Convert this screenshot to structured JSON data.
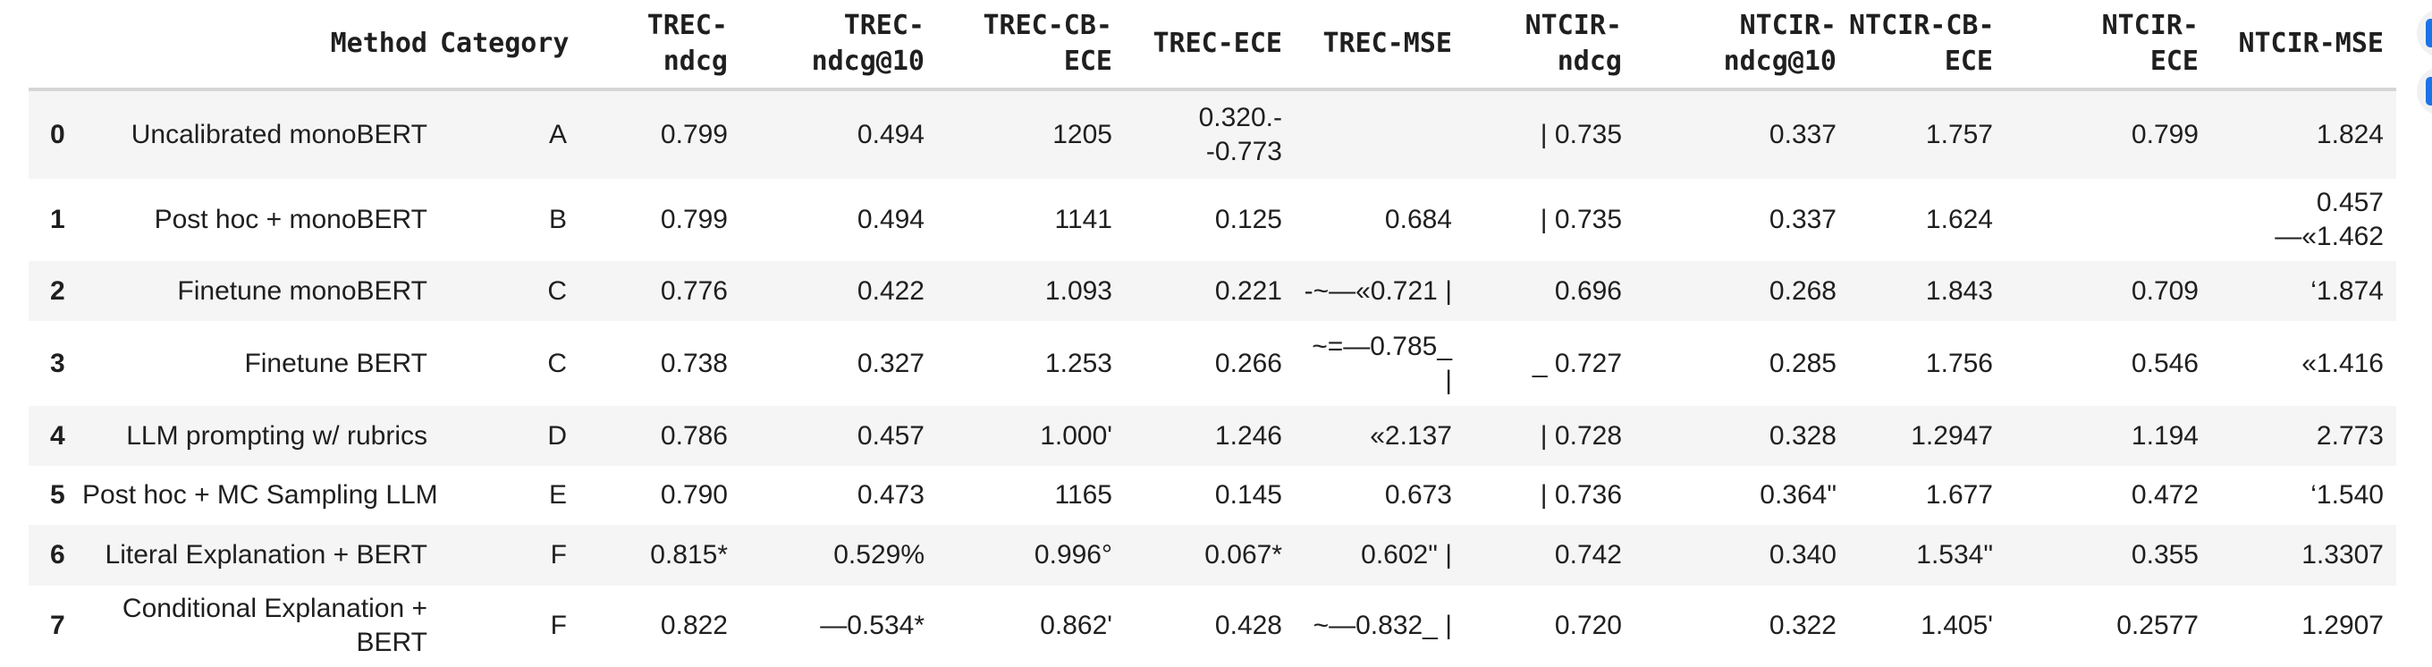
{
  "colors": {
    "accent_blue": "#1a73e8",
    "row_stripe": "#f5f5f5",
    "header_rule": "#d6d6d6",
    "text": "#1f1f1f",
    "button_circle_bg": "#f0f1f2"
  },
  "table": {
    "columns": [
      {
        "key": "index",
        "label_lines": [
          ""
        ]
      },
      {
        "key": "method",
        "label_lines": [
          "Method"
        ]
      },
      {
        "key": "category",
        "label_lines": [
          "Category"
        ]
      },
      {
        "key": "trec_ndcg",
        "label_lines": [
          "TREC-",
          "ndcg"
        ]
      },
      {
        "key": "trec_ndcg_at_10",
        "label_lines": [
          "TREC-",
          "ndcg@10"
        ]
      },
      {
        "key": "trec_cb_ece",
        "label_lines": [
          "TREC-CB-",
          "ECE"
        ]
      },
      {
        "key": "trec_ece",
        "label_lines": [
          "TREC-ECE"
        ]
      },
      {
        "key": "trec_mse",
        "label_lines": [
          "TREC-MSE"
        ]
      },
      {
        "key": "ntcir_ndcg",
        "label_lines": [
          "NTCIR-",
          "ndcg"
        ]
      },
      {
        "key": "ntcir_ndcg_at_10",
        "label_lines": [
          "NTCIR-",
          "ndcg@10"
        ]
      },
      {
        "key": "ntcir_cb_ece",
        "label_lines": [
          "NTCIR-CB-",
          "ECE"
        ]
      },
      {
        "key": "ntcir_ece",
        "label_lines": [
          "NTCIR-",
          "ECE"
        ]
      },
      {
        "key": "ntcir_mse",
        "label_lines": [
          "NTCIR-MSE"
        ]
      }
    ],
    "rows": [
      {
        "cells": [
          "0",
          "Uncalibrated monoBERT",
          "A",
          "0.799",
          "0.494",
          "1205",
          [
            "0.320.-",
            "-0.773"
          ],
          "",
          "| 0.735",
          "0.337",
          "1.757",
          "0.799",
          "1.824"
        ]
      },
      {
        "cells": [
          "1",
          "Post hoc + monoBERT",
          "B",
          "0.799",
          "0.494",
          "1141",
          "0.125",
          "0.684",
          "| 0.735",
          "0.337",
          "1.624",
          "",
          [
            "0.457",
            "—«1.462"
          ]
        ]
      },
      {
        "cells": [
          "2",
          "Finetune monoBERT",
          "C",
          "0.776",
          "0.422",
          "1.093",
          "0.221",
          "-~—«0.721 |",
          "0.696",
          "0.268",
          "1.843",
          "0.709",
          "‘1.874"
        ]
      },
      {
        "cells": [
          "3",
          "Finetune BERT",
          "C",
          "0.738",
          "0.327",
          "1.253",
          "0.266",
          [
            "~=—0.785_",
            "|"
          ],
          "_ 0.727",
          "0.285",
          "1.756",
          "0.546",
          "«1.416"
        ]
      },
      {
        "cells": [
          "4",
          "LLM prompting w/ rubrics",
          "D",
          "0.786",
          "0.457",
          "1.000'",
          "1.246",
          "«2.137",
          "| 0.728",
          "0.328",
          "1.2947",
          "1.194",
          "2.773"
        ]
      },
      {
        "cells": [
          "5",
          "Post hoc + MC Sampling LLM",
          "E",
          "0.790",
          "0.473",
          "1165",
          "0.145",
          "0.673",
          "| 0.736",
          "0.364\"",
          "1.677",
          "0.472",
          "‘1.540"
        ]
      },
      {
        "cells": [
          "6",
          "Literal Explanation + BERT",
          "F",
          "0.815*",
          "0.529%",
          "0.996°",
          "0.067*",
          "0.602\" |",
          "0.742",
          "0.340",
          "1.534\"",
          "0.355",
          "1.3307"
        ]
      },
      {
        "cells": [
          "7",
          [
            "Conditional Explanation +",
            "BERT"
          ],
          "F",
          "0.822",
          "—0.534*",
          "0.862'",
          "0.428",
          "~—0.832_ |",
          "0.720",
          "0.322",
          "1.405'",
          "0.2577",
          "1.2907"
        ]
      }
    ]
  },
  "action_buttons": [
    {
      "icon": "table-icon"
    },
    {
      "icon": "chart-icon"
    }
  ]
}
